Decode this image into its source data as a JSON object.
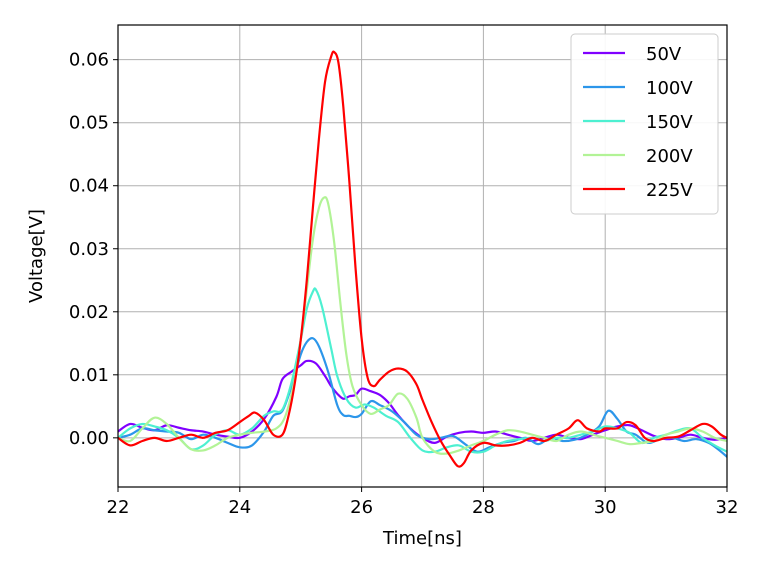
{
  "chart_data": {
    "type": "line",
    "title": "",
    "xlabel": "Time[ns]",
    "ylabel": "Voltage[V]",
    "xlim": [
      22,
      32
    ],
    "ylim": [
      -0.0078,
      0.0655
    ],
    "xticks": [
      22,
      24,
      26,
      28,
      30,
      32
    ],
    "xtick_labels": [
      "22",
      "24",
      "26",
      "28",
      "30",
      "32"
    ],
    "yticks": [
      0.0,
      0.01,
      0.02,
      0.03,
      0.04,
      0.05,
      0.06
    ],
    "ytick_labels": [
      "0.00",
      "0.01",
      "0.02",
      "0.03",
      "0.04",
      "0.05",
      "0.06"
    ],
    "grid": true,
    "legend_position": "top-right",
    "series": [
      {
        "name": "50V",
        "color": "#8000ff",
        "points": [
          [
            22.0,
            0.001
          ],
          [
            22.2,
            0.0022
          ],
          [
            22.4,
            0.0016
          ],
          [
            22.6,
            0.0012
          ],
          [
            22.8,
            0.002
          ],
          [
            23.0,
            0.0016
          ],
          [
            23.2,
            0.0012
          ],
          [
            23.4,
            0.001
          ],
          [
            23.6,
            0.0005
          ],
          [
            23.8,
            0.0002
          ],
          [
            24.0,
            0.0
          ],
          [
            24.2,
            0.001
          ],
          [
            24.4,
            0.003
          ],
          [
            24.6,
            0.0065
          ],
          [
            24.7,
            0.0093
          ],
          [
            24.85,
            0.0105
          ],
          [
            25.0,
            0.0115
          ],
          [
            25.1,
            0.0122
          ],
          [
            25.25,
            0.0118
          ],
          [
            25.4,
            0.0098
          ],
          [
            25.5,
            0.0082
          ],
          [
            25.6,
            0.007
          ],
          [
            25.7,
            0.0062
          ],
          [
            25.8,
            0.0066
          ],
          [
            25.9,
            0.0068
          ],
          [
            26.0,
            0.0078
          ],
          [
            26.15,
            0.0074
          ],
          [
            26.3,
            0.0068
          ],
          [
            26.45,
            0.0055
          ],
          [
            26.6,
            0.0036
          ],
          [
            26.8,
            0.0015
          ],
          [
            27.0,
            0.0
          ],
          [
            27.2,
            -0.0008
          ],
          [
            27.4,
            0.0002
          ],
          [
            27.6,
            0.0008
          ],
          [
            27.8,
            0.001
          ],
          [
            28.0,
            0.0008
          ],
          [
            28.2,
            0.001
          ],
          [
            28.4,
            0.0005
          ],
          [
            28.6,
            0.0
          ],
          [
            28.8,
            -0.0005
          ],
          [
            29.0,
            0.0
          ],
          [
            29.2,
            0.0005
          ],
          [
            29.4,
            0.0
          ],
          [
            29.6,
            -0.0002
          ],
          [
            29.8,
            0.0005
          ],
          [
            30.0,
            0.0012
          ],
          [
            30.2,
            0.0018
          ],
          [
            30.4,
            0.002
          ],
          [
            30.6,
            0.0012
          ],
          [
            30.8,
            0.0003
          ],
          [
            31.0,
            -0.0002
          ],
          [
            31.2,
            0.0
          ],
          [
            31.4,
            0.0005
          ],
          [
            31.6,
            0.0
          ],
          [
            31.8,
            -0.0003
          ],
          [
            32.0,
            0.0
          ]
        ]
      },
      {
        "name": "100V",
        "color": "#2c96ea",
        "points": [
          [
            22.0,
            0.0
          ],
          [
            22.2,
            0.0005
          ],
          [
            22.4,
            0.0015
          ],
          [
            22.6,
            0.0012
          ],
          [
            22.8,
            0.001
          ],
          [
            23.0,
            0.0008
          ],
          [
            23.2,
            -0.0002
          ],
          [
            23.4,
            0.0005
          ],
          [
            23.6,
            0.0
          ],
          [
            23.8,
            -0.0008
          ],
          [
            24.0,
            -0.0015
          ],
          [
            24.2,
            -0.0012
          ],
          [
            24.4,
            0.001
          ],
          [
            24.55,
            0.0035
          ],
          [
            24.7,
            0.0043
          ],
          [
            24.85,
            0.0082
          ],
          [
            25.0,
            0.0132
          ],
          [
            25.1,
            0.0152
          ],
          [
            25.2,
            0.0158
          ],
          [
            25.3,
            0.0145
          ],
          [
            25.45,
            0.0105
          ],
          [
            25.6,
            0.0052
          ],
          [
            25.7,
            0.0036
          ],
          [
            25.8,
            0.0035
          ],
          [
            25.9,
            0.0033
          ],
          [
            26.0,
            0.0038
          ],
          [
            26.15,
            0.0058
          ],
          [
            26.3,
            0.0052
          ],
          [
            26.5,
            0.0042
          ],
          [
            26.7,
            0.0025
          ],
          [
            26.9,
            0.0005
          ],
          [
            27.1,
            -0.0002
          ],
          [
            27.3,
            0.0
          ],
          [
            27.5,
            0.0003
          ],
          [
            27.7,
            -0.001
          ],
          [
            27.9,
            -0.0022
          ],
          [
            28.1,
            -0.0015
          ],
          [
            28.3,
            -0.0008
          ],
          [
            28.5,
            -0.0005
          ],
          [
            28.7,
            0.0
          ],
          [
            28.9,
            -0.001
          ],
          [
            29.1,
            0.0
          ],
          [
            29.3,
            -0.0005
          ],
          [
            29.5,
            -0.0003
          ],
          [
            29.7,
            0.0005
          ],
          [
            29.9,
            0.0018
          ],
          [
            30.05,
            0.0043
          ],
          [
            30.2,
            0.003
          ],
          [
            30.35,
            0.001
          ],
          [
            30.5,
            0.0005
          ],
          [
            30.7,
            -0.0008
          ],
          [
            30.9,
            -0.0002
          ],
          [
            31.1,
            0.0
          ],
          [
            31.3,
            -0.0005
          ],
          [
            31.5,
            -0.0002
          ],
          [
            31.7,
            -0.0008
          ],
          [
            31.85,
            -0.0018
          ],
          [
            32.0,
            -0.003
          ]
        ]
      },
      {
        "name": "150V",
        "color": "#4df0d1",
        "points": [
          [
            22.0,
            0.0
          ],
          [
            22.2,
            0.0015
          ],
          [
            22.4,
            0.0022
          ],
          [
            22.6,
            0.0018
          ],
          [
            22.8,
            0.0012
          ],
          [
            23.0,
            0.0
          ],
          [
            23.2,
            -0.0018
          ],
          [
            23.4,
            -0.0012
          ],
          [
            23.6,
            0.0005
          ],
          [
            23.8,
            0.0012
          ],
          [
            24.0,
            0.0005
          ],
          [
            24.2,
            0.0015
          ],
          [
            24.4,
            0.0035
          ],
          [
            24.55,
            0.0042
          ],
          [
            24.7,
            0.0045
          ],
          [
            24.85,
            0.0088
          ],
          [
            25.0,
            0.0155
          ],
          [
            25.1,
            0.0205
          ],
          [
            25.2,
            0.0232
          ],
          [
            25.25,
            0.0235
          ],
          [
            25.35,
            0.0208
          ],
          [
            25.5,
            0.0142
          ],
          [
            25.6,
            0.0098
          ],
          [
            25.75,
            0.0062
          ],
          [
            25.9,
            0.0048
          ],
          [
            26.05,
            0.0053
          ],
          [
            26.2,
            0.0048
          ],
          [
            26.4,
            0.0035
          ],
          [
            26.6,
            0.0025
          ],
          [
            26.8,
            0.0
          ],
          [
            27.0,
            -0.002
          ],
          [
            27.2,
            -0.0022
          ],
          [
            27.4,
            -0.0015
          ],
          [
            27.6,
            -0.0012
          ],
          [
            27.8,
            -0.0022
          ],
          [
            28.0,
            -0.0022
          ],
          [
            28.2,
            -0.0012
          ],
          [
            28.4,
            -0.0005
          ],
          [
            28.6,
            -0.0002
          ],
          [
            28.8,
            0.0
          ],
          [
            29.0,
            -0.0005
          ],
          [
            29.2,
            0.0
          ],
          [
            29.4,
            0.0
          ],
          [
            29.6,
            0.0005
          ],
          [
            29.8,
            0.001
          ],
          [
            30.0,
            0.0018
          ],
          [
            30.2,
            0.0015
          ],
          [
            30.4,
            0.0008
          ],
          [
            30.6,
            -0.0008
          ],
          [
            30.8,
            0.0
          ],
          [
            31.0,
            0.0005
          ],
          [
            31.2,
            0.0012
          ],
          [
            31.4,
            0.0015
          ],
          [
            31.6,
            0.0
          ],
          [
            31.8,
            -0.0012
          ],
          [
            32.0,
            -0.0022
          ]
        ]
      },
      {
        "name": "200V",
        "color": "#b2f396",
        "points": [
          [
            22.0,
            0.0
          ],
          [
            22.2,
            -0.0005
          ],
          [
            22.4,
            0.0015
          ],
          [
            22.6,
            0.0032
          ],
          [
            22.8,
            0.0022
          ],
          [
            23.0,
            0.0
          ],
          [
            23.2,
            -0.0018
          ],
          [
            23.4,
            -0.002
          ],
          [
            23.6,
            -0.0012
          ],
          [
            23.8,
            0.0
          ],
          [
            24.0,
            0.0005
          ],
          [
            24.2,
            0.0008
          ],
          [
            24.4,
            0.001
          ],
          [
            24.6,
            0.0015
          ],
          [
            24.75,
            0.0035
          ],
          [
            24.9,
            0.0092
          ],
          [
            25.0,
            0.0155
          ],
          [
            25.1,
            0.0235
          ],
          [
            25.2,
            0.0315
          ],
          [
            25.3,
            0.0365
          ],
          [
            25.38,
            0.0381
          ],
          [
            25.45,
            0.0372
          ],
          [
            25.55,
            0.031
          ],
          [
            25.65,
            0.0215
          ],
          [
            25.75,
            0.0132
          ],
          [
            25.85,
            0.0082
          ],
          [
            26.0,
            0.0052
          ],
          [
            26.15,
            0.0038
          ],
          [
            26.3,
            0.0045
          ],
          [
            26.45,
            0.0052
          ],
          [
            26.6,
            0.007
          ],
          [
            26.75,
            0.0062
          ],
          [
            26.9,
            0.0032
          ],
          [
            27.0,
            0.0
          ],
          [
            27.2,
            -0.0022
          ],
          [
            27.4,
            -0.0025
          ],
          [
            27.6,
            -0.002
          ],
          [
            27.8,
            -0.0012
          ],
          [
            28.0,
            -0.0005
          ],
          [
            28.2,
            0.0005
          ],
          [
            28.4,
            0.0012
          ],
          [
            28.6,
            0.001
          ],
          [
            28.8,
            0.0005
          ],
          [
            29.0,
            0.0
          ],
          [
            29.2,
            -0.0005
          ],
          [
            29.4,
            0.0005
          ],
          [
            29.6,
            0.001
          ],
          [
            29.8,
            0.0005
          ],
          [
            30.0,
            0.0
          ],
          [
            30.2,
            -0.0005
          ],
          [
            30.4,
            -0.001
          ],
          [
            30.6,
            -0.0008
          ],
          [
            30.8,
            -0.0005
          ],
          [
            31.0,
            0.0005
          ],
          [
            31.2,
            0.001
          ],
          [
            31.4,
            0.0015
          ],
          [
            31.6,
            0.001
          ],
          [
            31.8,
            0.0
          ],
          [
            32.0,
            -0.0005
          ]
        ]
      },
      {
        "name": "225V",
        "color": "#ff0000",
        "points": [
          [
            22.0,
            0.0
          ],
          [
            22.2,
            -0.0012
          ],
          [
            22.4,
            -0.0005
          ],
          [
            22.6,
            0.0
          ],
          [
            22.8,
            -0.0005
          ],
          [
            23.0,
            0.0
          ],
          [
            23.2,
            0.0005
          ],
          [
            23.4,
            0.0
          ],
          [
            23.6,
            0.0008
          ],
          [
            23.8,
            0.0012
          ],
          [
            24.0,
            0.0025
          ],
          [
            24.15,
            0.0035
          ],
          [
            24.25,
            0.004
          ],
          [
            24.4,
            0.0028
          ],
          [
            24.55,
            0.0005
          ],
          [
            24.7,
            0.0005
          ],
          [
            24.8,
            0.0035
          ],
          [
            24.9,
            0.0085
          ],
          [
            25.0,
            0.0155
          ],
          [
            25.1,
            0.025
          ],
          [
            25.2,
            0.0365
          ],
          [
            25.3,
            0.0475
          ],
          [
            25.4,
            0.0565
          ],
          [
            25.5,
            0.0605
          ],
          [
            25.55,
            0.0612
          ],
          [
            25.62,
            0.0595
          ],
          [
            25.7,
            0.0525
          ],
          [
            25.8,
            0.0405
          ],
          [
            25.9,
            0.027
          ],
          [
            26.0,
            0.0158
          ],
          [
            26.1,
            0.0095
          ],
          [
            26.2,
            0.0082
          ],
          [
            26.3,
            0.0092
          ],
          [
            26.45,
            0.0105
          ],
          [
            26.6,
            0.011
          ],
          [
            26.75,
            0.0105
          ],
          [
            26.9,
            0.0085
          ],
          [
            27.0,
            0.006
          ],
          [
            27.15,
            0.0025
          ],
          [
            27.3,
            -0.0005
          ],
          [
            27.45,
            -0.0028
          ],
          [
            27.58,
            -0.0045
          ],
          [
            27.68,
            -0.004
          ],
          [
            27.8,
            -0.002
          ],
          [
            28.0,
            -0.0008
          ],
          [
            28.2,
            -0.0012
          ],
          [
            28.4,
            -0.0012
          ],
          [
            28.6,
            -0.0008
          ],
          [
            28.8,
            0.0
          ],
          [
            29.0,
            -0.0005
          ],
          [
            29.2,
            0.0005
          ],
          [
            29.4,
            0.0015
          ],
          [
            29.55,
            0.0028
          ],
          [
            29.7,
            0.0015
          ],
          [
            29.9,
            0.001
          ],
          [
            30.0,
            0.0015
          ],
          [
            30.2,
            0.0015
          ],
          [
            30.35,
            0.0025
          ],
          [
            30.5,
            0.002
          ],
          [
            30.65,
            0.0
          ],
          [
            30.8,
            -0.0005
          ],
          [
            31.0,
            0.0
          ],
          [
            31.2,
            0.0002
          ],
          [
            31.4,
            0.0012
          ],
          [
            31.6,
            0.0022
          ],
          [
            31.75,
            0.0018
          ],
          [
            31.9,
            0.0005
          ],
          [
            32.0,
            0.0
          ]
        ]
      }
    ]
  }
}
